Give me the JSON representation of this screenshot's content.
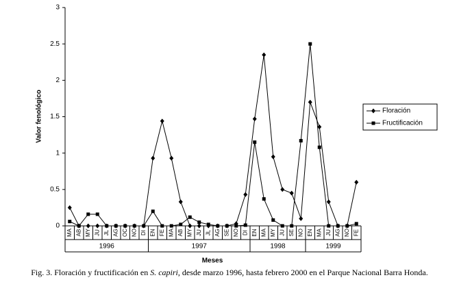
{
  "chart_data": {
    "type": "line",
    "y_label": "Valor fenológico",
    "x_label": "Meses",
    "caption_before": "Fig. 3. Floración y fructificación en ",
    "caption_italic": "S. capiri",
    "caption_after": ", desde marzo 1996, hasta febrero 2000 en el Parque Nacional Barra Honda.",
    "groups": [
      {
        "label": "1996",
        "categories": [
          "MA",
          "AB",
          "MY",
          "JU",
          "JL",
          "AG",
          "OC",
          "NO",
          "DI"
        ]
      },
      {
        "label": "1997",
        "categories": [
          "EN",
          "FE",
          "MA",
          "AB",
          "MY",
          "JU",
          "JL",
          "AG",
          "SE",
          "NO",
          "DI"
        ]
      },
      {
        "label": "1998",
        "categories": [
          "EN",
          "MA",
          "MY",
          "JU",
          "SE",
          "NO"
        ]
      },
      {
        "label": "1999",
        "categories": [
          "EN",
          "MA",
          "JU",
          "AG",
          "NO",
          "FE"
        ]
      }
    ],
    "series": [
      {
        "name": "Floración",
        "color": "#000000",
        "marker": "diamond",
        "values": [
          0.25,
          0,
          0,
          0,
          0,
          0,
          0,
          0,
          0,
          0.93,
          1.44,
          0.93,
          0.33,
          0,
          0,
          0,
          0,
          0,
          0.03,
          0.43,
          1.47,
          2.35,
          0.95,
          0.5,
          0.45,
          0.1,
          1.7,
          1.36,
          0.33,
          0,
          0,
          0.6
        ]
      },
      {
        "name": "Fructificación",
        "color": "#000000",
        "marker": "square",
        "values": [
          0.06,
          0,
          0.16,
          0.16,
          0,
          0,
          0,
          0,
          0,
          0.2,
          0,
          0,
          0.02,
          0.12,
          0.05,
          0.02,
          0,
          0,
          0,
          0.01,
          1.15,
          0.37,
          0.08,
          0,
          0,
          1.17,
          2.5,
          1.08,
          0,
          0,
          0,
          0.03
        ]
      }
    ],
    "ylim": [
      0,
      3
    ],
    "yticks": [
      0,
      0.5,
      1,
      1.5,
      2,
      2.5,
      3
    ],
    "legend": "right"
  }
}
